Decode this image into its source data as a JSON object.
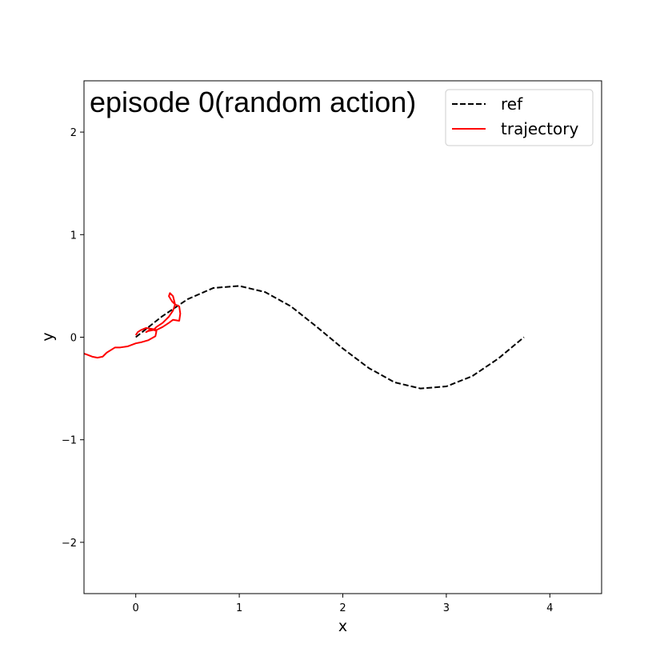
{
  "chart_data": {
    "type": "line",
    "title": "episode 0(random action)",
    "xlabel": "x",
    "ylabel": "y",
    "xlim": [
      -0.5,
      4.5
    ],
    "ylim": [
      -2.5,
      2.5
    ],
    "xticks": [
      0,
      1,
      2,
      3,
      4
    ],
    "yticks": [
      -2,
      -1,
      0,
      1,
      2
    ],
    "xtick_labels": [
      "0",
      "1",
      "2",
      "3",
      "4"
    ],
    "ytick_labels": [
      "−2",
      "−1",
      "0",
      "1",
      "2"
    ],
    "grid": false,
    "legend_position": "top-right",
    "series": [
      {
        "name": "ref",
        "color": "#000000",
        "style": "dashed",
        "x": [
          0.0,
          0.25,
          0.5,
          0.75,
          1.0,
          1.25,
          1.5,
          1.75,
          2.0,
          2.25,
          2.5,
          2.75,
          3.0,
          3.25,
          3.5,
          3.75
        ],
        "y": [
          0.0,
          0.2,
          0.37,
          0.48,
          0.5,
          0.44,
          0.3,
          0.1,
          -0.11,
          -0.3,
          -0.44,
          -0.5,
          -0.48,
          -0.38,
          -0.21,
          0.0
        ]
      },
      {
        "name": "trajectory",
        "color": "#ff0000",
        "style": "solid",
        "x": [
          0.0,
          0.02,
          0.05,
          0.1,
          0.16,
          0.2,
          0.26,
          0.32,
          0.36,
          0.42,
          0.43,
          0.42,
          0.38,
          0.35,
          0.32,
          0.33,
          0.36,
          0.38,
          0.36,
          0.32,
          0.26,
          0.2,
          0.17,
          0.12,
          0.1,
          0.15,
          0.2,
          0.19,
          0.12,
          0.05,
          0.0,
          -0.08,
          -0.15,
          -0.2,
          -0.28,
          -0.32,
          -0.37,
          -0.42,
          -0.47,
          -0.5
        ],
        "y": [
          0.02,
          0.05,
          0.07,
          0.09,
          0.08,
          0.07,
          0.1,
          0.14,
          0.17,
          0.16,
          0.23,
          0.3,
          0.32,
          0.35,
          0.4,
          0.43,
          0.4,
          0.32,
          0.26,
          0.2,
          0.14,
          0.1,
          0.07,
          0.06,
          0.05,
          0.08,
          0.06,
          0.01,
          -0.03,
          -0.05,
          -0.06,
          -0.09,
          -0.1,
          -0.1,
          -0.15,
          -0.19,
          -0.2,
          -0.19,
          -0.17,
          -0.16
        ]
      }
    ]
  }
}
